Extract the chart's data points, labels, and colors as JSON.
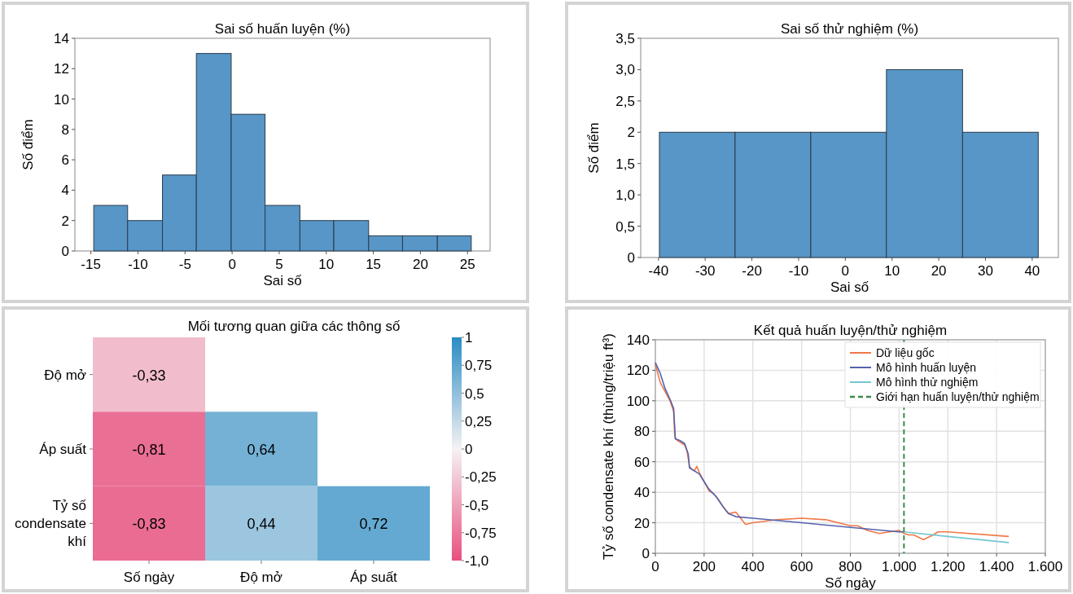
{
  "chart_data": [
    {
      "type": "histogram",
      "title": "Sai số huấn luyện (%)",
      "xlabel": "Sai số",
      "ylabel": "Số điểm",
      "color": "#5796c6",
      "bins": [
        -14.7,
        -11.1,
        -7.4,
        -3.8,
        -0.1,
        3.5,
        7.2,
        10.8,
        14.5,
        18.1,
        21.8,
        25.4
      ],
      "values": [
        3,
        2,
        5,
        13,
        9,
        3,
        2,
        2,
        1,
        1,
        1
      ],
      "xlim": [
        -16.7,
        27.4
      ],
      "xticks": [
        -15,
        -10,
        -5,
        0,
        5,
        10,
        15,
        20,
        25
      ],
      "ylim": [
        0,
        14
      ],
      "yticks": [
        0,
        2,
        4,
        6,
        8,
        10,
        12,
        14
      ],
      "grid": false
    },
    {
      "type": "histogram",
      "title": "Sai số thử nghiệm (%)",
      "xlabel": "Sai số",
      "ylabel": "Số điểm",
      "color": "#5796c6",
      "bins": [
        -39.8,
        -23.6,
        -7.4,
        8.8,
        25.1,
        41.3
      ],
      "values": [
        2,
        2,
        2,
        3,
        2
      ],
      "xlim": [
        -43.8,
        45.6
      ],
      "xticks": [
        -40,
        -30,
        -20,
        -10,
        0,
        10,
        20,
        30,
        40
      ],
      "ylim": [
        0,
        3.5
      ],
      "yticks": [
        0,
        {
          "value": 0.5,
          "label": "0,5"
        },
        {
          "value": 1,
          "label": "1,0"
        },
        {
          "value": 1.5,
          "label": "1,5"
        },
        2,
        {
          "value": 2.5,
          "label": "2,5"
        },
        {
          "value": 3,
          "label": "3,0"
        },
        {
          "value": 3.5,
          "label": "3,5"
        }
      ],
      "grid": false
    },
    {
      "type": "heatmap",
      "title": "Mối tương quan giữa các thông số",
      "categories": [
        "Số ngày",
        "Độ mở",
        "Áp suất"
      ],
      "y_categories": [
        "Độ mở",
        "Áp suất",
        "Tỷ số condensate khí"
      ],
      "cells": [
        [
          -0.33,
          null,
          null
        ],
        [
          -0.81,
          0.64,
          null
        ],
        [
          -0.83,
          0.44,
          0.72
        ]
      ],
      "cell_labels": [
        [
          "-0,33",
          null,
          null
        ],
        [
          "-0,81",
          "0,64",
          null
        ],
        [
          "-0,83",
          "0,44",
          "0,72"
        ]
      ],
      "clim": [
        -1,
        1
      ],
      "cticks": [
        {
          "value": -1,
          "label": "-1,0"
        },
        {
          "value": -0.75,
          "label": "-0,75"
        },
        {
          "value": -0.5,
          "label": "-0,5"
        },
        {
          "value": -0.25,
          "label": "-0,25"
        },
        0,
        {
          "value": 0.25,
          "label": "0,25"
        },
        {
          "value": 0.5,
          "label": "0,5"
        },
        {
          "value": 0.75,
          "label": "0,75"
        },
        1
      ]
    },
    {
      "type": "line",
      "title": "Kết quả huấn luyện/thử nghiệm",
      "xlabel": "Số ngày",
      "ylabel": "Tỷ số condensate khí (thùng/triệu ft³)",
      "xlim": [
        0,
        1600
      ],
      "xticks": [
        0,
        200,
        400,
        600,
        800,
        {
          "value": 1000,
          "label": "1.000"
        },
        {
          "value": 1200,
          "label": "1.200"
        },
        {
          "value": 1400,
          "label": "1.400"
        },
        {
          "value": 1600,
          "label": "1.600"
        }
      ],
      "ylim": [
        0,
        140
      ],
      "yticks": [
        0,
        20,
        40,
        60,
        80,
        100,
        120,
        140
      ],
      "grid": true,
      "legend": "top right",
      "line_style": "solid",
      "marker": "none",
      "series": [
        {
          "name": "Dữ liệu gốc",
          "color": "#f07848",
          "x": [
            0,
            20,
            40,
            60,
            75,
            80,
            90,
            100,
            110,
            120,
            130,
            140,
            150,
            160,
            170,
            180,
            200,
            220,
            240,
            260,
            280,
            300,
            330,
            350,
            370,
            400,
            500,
            600,
            700,
            800,
            830,
            870,
            920,
            960,
            1000,
            1020,
            1040,
            1060,
            1100,
            1140,
            1160,
            1200,
            1450
          ],
          "values": [
            124,
            112,
            106,
            100,
            93,
            76,
            74,
            73,
            72,
            71,
            67,
            57,
            55,
            54,
            57,
            53,
            47,
            41,
            39,
            35,
            30,
            26,
            27,
            23,
            19,
            20,
            22,
            23,
            22,
            18,
            18,
            15,
            13,
            14,
            15,
            13,
            12,
            12,
            9,
            12,
            14,
            14,
            11
          ]
        },
        {
          "name": "Mô hình huấn luyện",
          "color": "#5562ad",
          "x": [
            0,
            20,
            40,
            60,
            75,
            82,
            100,
            120,
            135,
            140,
            160,
            180,
            200,
            220,
            250,
            280,
            300,
            330,
            400,
            600,
            800,
            1000,
            1020
          ],
          "values": [
            125,
            118,
            108,
            101,
            95,
            75,
            74,
            72,
            65,
            56,
            54,
            52,
            47,
            42,
            37,
            30,
            26,
            24,
            23,
            20,
            17,
            14,
            14
          ]
        },
        {
          "name": "Mô hình thử nghiệm",
          "color": "#72c8d2",
          "x": [
            1020,
            1200,
            1450
          ],
          "values": [
            14,
            11,
            7
          ]
        }
      ],
      "ref_lines": [
        {
          "axis": "x",
          "value": 1020,
          "label": "Giới hạn huấn luyện/thử nghiệm",
          "color": "#3d8a4a",
          "line_style": "dashed"
        }
      ]
    }
  ]
}
